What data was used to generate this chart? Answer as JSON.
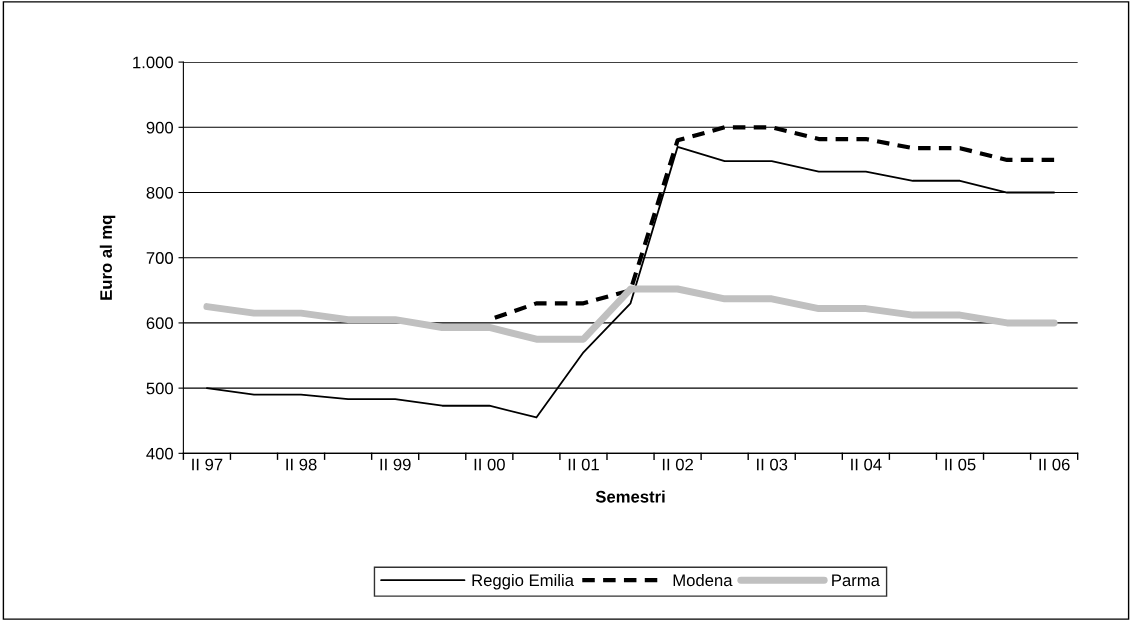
{
  "chart_data": {
    "type": "line",
    "xlabel": "Semestri",
    "ylabel": "Euro al mq",
    "categories": [
      "II 97",
      null,
      "II 98",
      null,
      "II 99",
      null,
      "II 00",
      null,
      "II 01",
      null,
      "II 02",
      null,
      "II 03",
      null,
      "II 04",
      null,
      "II 05",
      null,
      "II 06"
    ],
    "series": [
      {
        "name": "Reggio Emilia",
        "color": "#000000",
        "line_style": "solid",
        "values": [
          500,
          490,
          490,
          483,
          483,
          473,
          473,
          455,
          555,
          630,
          870,
          848,
          848,
          832,
          832,
          818,
          818,
          800,
          800
        ]
      },
      {
        "name": "Modena",
        "color": "#000000",
        "line_style": "dashed",
        "values": [
          null,
          null,
          null,
          null,
          null,
          null,
          605,
          630,
          630,
          650,
          880,
          900,
          900,
          882,
          882,
          868,
          868,
          850,
          850
        ]
      },
      {
        "name": "Parma",
        "color": "#c0c0c0",
        "line_style": "solid",
        "values": [
          625,
          615,
          615,
          605,
          605,
          593,
          593,
          575,
          575,
          652,
          652,
          637,
          637,
          622,
          622,
          612,
          612,
          600,
          600
        ]
      }
    ],
    "ylim": [
      400,
      1000
    ],
    "yticks": [
      400,
      500,
      600,
      700,
      800,
      900,
      {
        "value": 1000,
        "label": "1.000"
      }
    ],
    "grid": "y",
    "legend": "bottom",
    "marker": "none"
  }
}
